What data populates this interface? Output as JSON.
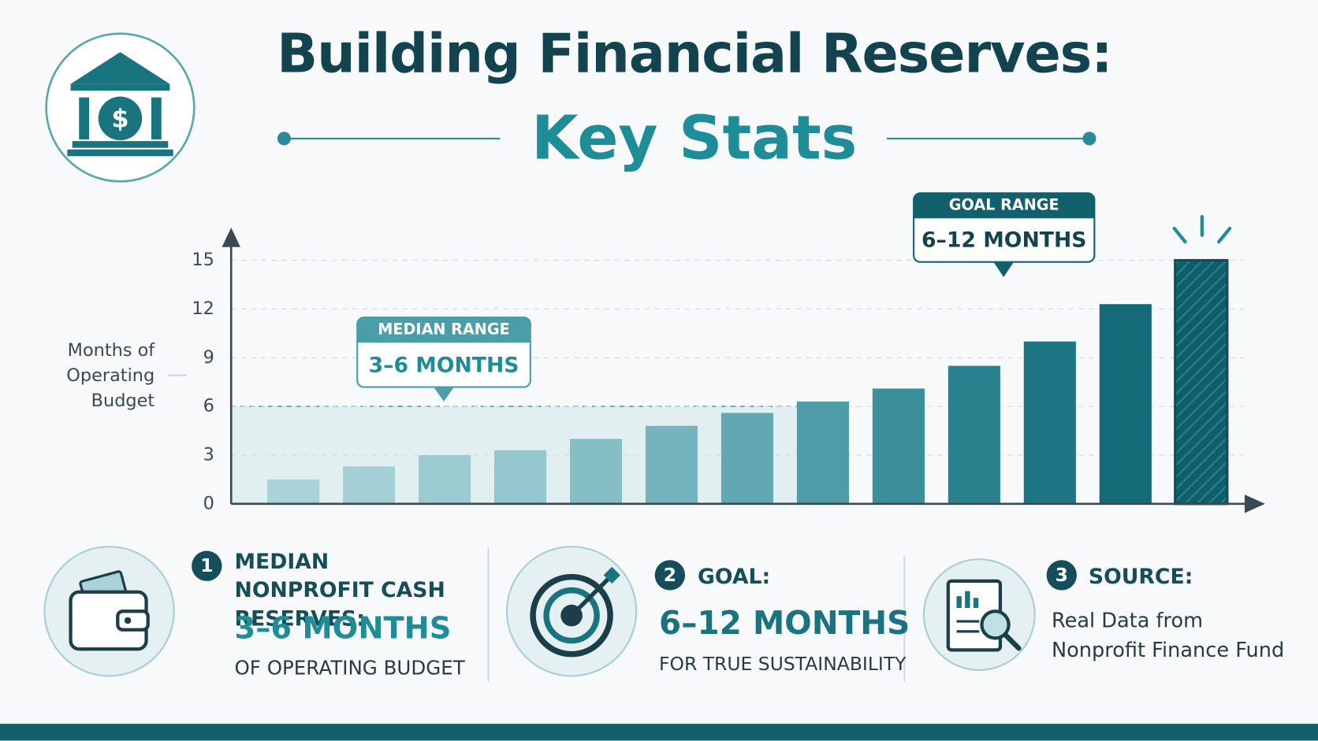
{
  "chart_data": {
    "type": "bar",
    "title": "Building Financial Reserves:",
    "subtitle": "Key Stats",
    "y_label": "Months of Operating Budget",
    "values": [
      1.5,
      2.3,
      3,
      3.3,
      4,
      4.8,
      5.6,
      6.3,
      7.1,
      8.5,
      10,
      12.3,
      15
    ],
    "colors": [
      "#a9d3d8",
      "#a3cfd5",
      "#9ccbd1",
      "#93c6cd",
      "#86bec6",
      "#76b4bd",
      "#62a8b2",
      "#4e9ca7",
      "#3b8f9b",
      "#2b828f",
      "#1e7684",
      "#156a78",
      "#0f5e6b"
    ],
    "ylim": [
      0,
      15
    ],
    "yticks": [
      0,
      3,
      6,
      9,
      12,
      15
    ],
    "grid": true,
    "highlight_band": [
      0,
      6
    ],
    "annotations": {
      "median_label": "MEDIAN RANGE",
      "median_value": "3–6 MONTHS",
      "goal_label": "GOAL RANGE",
      "goal_value": "6–12 MONTHS"
    }
  },
  "stats": [
    {
      "number": "1",
      "heading": "MEDIAN NONPROFIT CASH RESERVES:",
      "value": "3–6 MONTHS",
      "note": "OF OPERATING BUDGET"
    },
    {
      "number": "2",
      "heading": "GOAL:",
      "value": "6–12 MONTHS",
      "note": "FOR TRUE SUSTAINABILITY"
    },
    {
      "number": "3",
      "heading": "SOURCE:",
      "note": "Real Data from Nonprofit Finance Fund"
    }
  ]
}
